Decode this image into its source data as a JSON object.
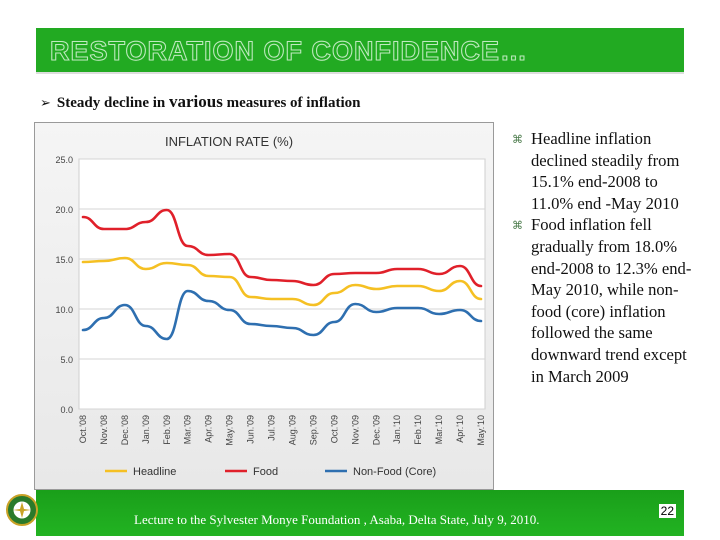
{
  "slide": {
    "title": "RESTORATION OF CONFIDENCE…",
    "subheading_pre": "Steady decline in ",
    "subheading_em": "various",
    "subheading_post": " measures of inflation",
    "bullets": [
      "Headline inflation declined steadily from 15.1% end-2008 to 11.0% end -May 2010",
      "Food inflation fell gradually from 18.0% end-2008 to 12.3% end-May 2010, while non-food (core) inflation followed the same downward trend except in March 2009"
    ],
    "footer": "Lecture to the Sylvester Monye Foundation , Asaba, Delta State, July 9, 2010.",
    "page_number": "22"
  },
  "icons": {
    "bullet": "bullet-marker-icon",
    "arrow": "arrow-bullet-icon",
    "seal": "emblem-seal-icon"
  },
  "colors": {
    "title_bar": "#22aa22",
    "headline": "#f5c023",
    "food": "#e0202a",
    "non_food": "#2e6fb0"
  },
  "chart_data": {
    "type": "line",
    "title": "INFLATION RATE (%)",
    "categories": [
      "Oct.'08",
      "Nov.'08",
      "Dec.'08",
      "Jan.'09",
      "Feb.'09",
      "Mar.'09",
      "Apr.'09",
      "May.'09",
      "Jun.'09",
      "Jul.'09",
      "Aug.'09",
      "Sep.'09",
      "Oct.'09",
      "Nov.'09",
      "Dec.'09",
      "Jan.'10",
      "Feb.'10",
      "Mar.'10",
      "Apr.'10",
      "May.'10"
    ],
    "yticks": [
      "0.0",
      "5.0",
      "10.0",
      "15.0",
      "20.0",
      "25.0"
    ],
    "ylim": [
      0,
      25
    ],
    "grid": true,
    "legend_position": "bottom",
    "series": [
      {
        "name": "Headline",
        "color": "#f5c023",
        "values": [
          14.7,
          14.8,
          15.1,
          14.0,
          14.6,
          14.4,
          13.3,
          13.2,
          11.2,
          11.0,
          11.0,
          10.4,
          11.6,
          12.4,
          12.0,
          12.3,
          12.3,
          11.8,
          12.8,
          11.0
        ]
      },
      {
        "name": "Food",
        "color": "#e0202a",
        "values": [
          19.2,
          18.0,
          18.0,
          18.7,
          19.9,
          16.3,
          15.4,
          15.5,
          13.2,
          12.9,
          12.8,
          12.4,
          13.5,
          13.6,
          13.6,
          14.0,
          14.0,
          13.5,
          14.3,
          12.3
        ]
      },
      {
        "name": "Non-Food (Core)",
        "color": "#2e6fb0",
        "values": [
          7.9,
          9.1,
          10.4,
          8.3,
          7.0,
          11.8,
          10.8,
          9.9,
          8.5,
          8.3,
          8.1,
          7.4,
          8.7,
          10.5,
          9.7,
          10.1,
          10.1,
          9.5,
          9.9,
          8.8
        ]
      }
    ]
  }
}
